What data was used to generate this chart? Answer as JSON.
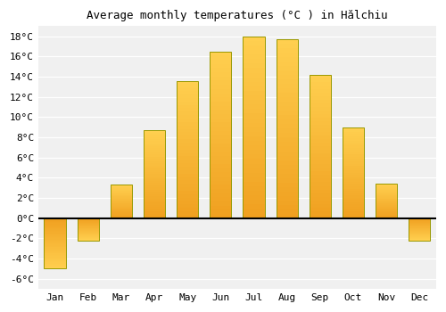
{
  "title": "Average monthly temperatures (°C ) in Hălchiu",
  "months": [
    "Jan",
    "Feb",
    "Mar",
    "Apr",
    "May",
    "Jun",
    "Jul",
    "Aug",
    "Sep",
    "Oct",
    "Nov",
    "Dec"
  ],
  "values": [
    -5.0,
    -2.2,
    3.3,
    8.7,
    13.6,
    16.5,
    18.0,
    17.7,
    14.2,
    9.0,
    3.4,
    -2.2
  ],
  "bar_color_dark": "#F0A020",
  "bar_color_light": "#FFD050",
  "bar_edge_color": "#999900",
  "ylim": [
    -7,
    19
  ],
  "yticks": [
    -6,
    -4,
    -2,
    0,
    2,
    4,
    6,
    8,
    10,
    12,
    14,
    16,
    18
  ],
  "background_color": "#ffffff",
  "plot_bg_color": "#f0f0f0",
  "grid_color": "#ffffff",
  "title_fontsize": 9,
  "tick_fontsize": 8,
  "bar_width": 0.65
}
